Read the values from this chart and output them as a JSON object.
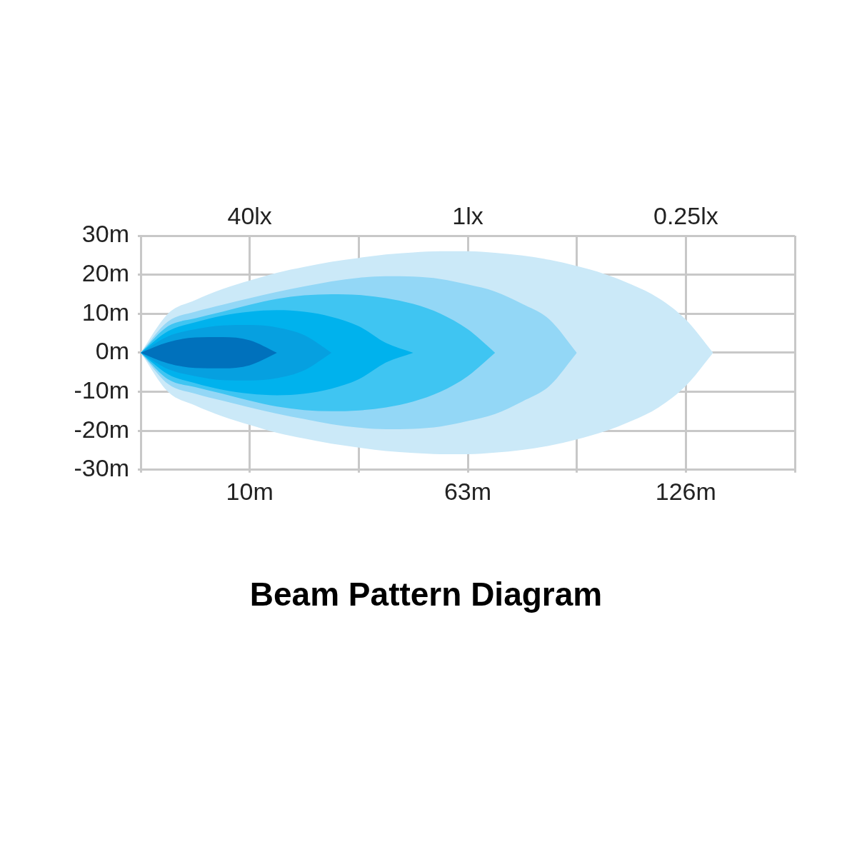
{
  "chart_data": {
    "type": "area",
    "title": "Beam Pattern Diagram",
    "categories": [
      null,
      null,
      null,
      null,
      "10m",
      null,
      null,
      null,
      null,
      null,
      null,
      null,
      "63m",
      null,
      null,
      null,
      null,
      null,
      null,
      null,
      "126m",
      null,
      null,
      null,
      null
    ],
    "annotations": [
      "40lx",
      "1lx",
      "0.25lx"
    ],
    "ylim": [
      -30,
      30
    ],
    "yticks": [
      {
        "value": -30,
        "label": "-30m"
      },
      {
        "value": -20,
        "label": "-20m"
      },
      {
        "value": -10,
        "label": "-10m"
      },
      {
        "value": 0,
        "label": "0m"
      },
      {
        "value": 10,
        "label": "10m"
      },
      {
        "value": 20,
        "label": "20m"
      },
      {
        "value": 30,
        "label": "30m"
      }
    ],
    "grid": true,
    "series": [
      {
        "color": "#0071bc",
        "values": [
          0,
          2.7,
          3.9,
          4,
          3.2,
          0,
          null,
          null,
          null,
          null,
          null,
          null,
          null,
          null,
          null,
          null,
          null,
          null,
          null,
          null,
          null,
          null,
          null,
          null,
          null
        ]
      },
      {
        "color": "#0071bc",
        "values": [
          0,
          -2.7,
          -3.9,
          -4,
          -3.2,
          0,
          null,
          null,
          null,
          null,
          null,
          null,
          null,
          null,
          null,
          null,
          null,
          null,
          null,
          null,
          null,
          null,
          null,
          null,
          null
        ]
      },
      {
        "color": "#06a0e0",
        "values": [
          0,
          4.2,
          6,
          7,
          7.1,
          6.5,
          4.5,
          0,
          null,
          null,
          null,
          null,
          null,
          null,
          null,
          null,
          null,
          null,
          null,
          null,
          null,
          null,
          null,
          null,
          null
        ]
      },
      {
        "color": "#06a0e0",
        "values": [
          0,
          -4.2,
          -6,
          -7,
          -7.1,
          -6.5,
          -4.5,
          0,
          null,
          null,
          null,
          null,
          null,
          null,
          null,
          null,
          null,
          null,
          null,
          null,
          null,
          null,
          null,
          null,
          null
        ]
      },
      {
        "color": "#00b2ed",
        "values": [
          0,
          5.5,
          7.8,
          9.5,
          10.5,
          10.9,
          10.5,
          9.2,
          6.8,
          2.5,
          0,
          null,
          null,
          null,
          null,
          null,
          null,
          null,
          null,
          null,
          null,
          null,
          null,
          null,
          null
        ]
      },
      {
        "color": "#00b2ed",
        "values": [
          0,
          -5.5,
          -7.8,
          -9.5,
          -10.5,
          -10.9,
          -10.5,
          -9.2,
          -6.8,
          -2.5,
          0,
          null,
          null,
          null,
          null,
          null,
          null,
          null,
          null,
          null,
          null,
          null,
          null,
          null,
          null
        ]
      },
      {
        "color": "#3fc5f2",
        "values": [
          0,
          6.8,
          8.8,
          10.5,
          12.3,
          13.8,
          14.7,
          15,
          14.8,
          14,
          12.5,
          10,
          6,
          0,
          null,
          null,
          null,
          null,
          null,
          null,
          null,
          null,
          null,
          null,
          null
        ]
      },
      {
        "color": "#3fc5f2",
        "values": [
          0,
          -6.8,
          -8.8,
          -10.5,
          -12.3,
          -13.8,
          -14.7,
          -15,
          -14.8,
          -14,
          -12.5,
          -10,
          -6,
          0,
          null,
          null,
          null,
          null,
          null,
          null,
          null,
          null,
          null,
          null,
          null
        ]
      },
      {
        "color": "#93d7f6",
        "values": [
          0,
          8,
          10.5,
          12.3,
          14,
          15.6,
          17,
          18.3,
          19.2,
          19.6,
          19.5,
          18.9,
          17.5,
          15.7,
          12.5,
          8.5,
          0,
          null,
          null,
          null,
          null,
          null,
          null,
          null,
          null
        ]
      },
      {
        "color": "#93d7f6",
        "values": [
          0,
          -8,
          -10.5,
          -12.3,
          -14,
          -15.6,
          -17,
          -18.3,
          -19.2,
          -19.6,
          -19.5,
          -18.9,
          -17.5,
          -15.7,
          -12.5,
          -8.5,
          0,
          null,
          null,
          null,
          null,
          null,
          null,
          null,
          null
        ]
      },
      {
        "color": "#cbe9f8",
        "values": [
          0,
          10,
          13.5,
          16.3,
          18.5,
          20.5,
          22,
          23.3,
          24.3,
          25.2,
          25.7,
          26,
          26,
          25.6,
          24.9,
          23.8,
          22.2,
          20.2,
          17.5,
          14,
          8.5,
          0,
          null,
          null,
          null
        ]
      },
      {
        "color": "#cbe9f8",
        "values": [
          0,
          -10,
          -13.5,
          -16.3,
          -18.5,
          -20.5,
          -22,
          -23.3,
          -24.3,
          -25.2,
          -25.7,
          -26,
          -26,
          -25.6,
          -24.9,
          -23.8,
          -22.2,
          -20.2,
          -17.5,
          -14,
          -8.5,
          0,
          null,
          null,
          null
        ]
      }
    ]
  }
}
